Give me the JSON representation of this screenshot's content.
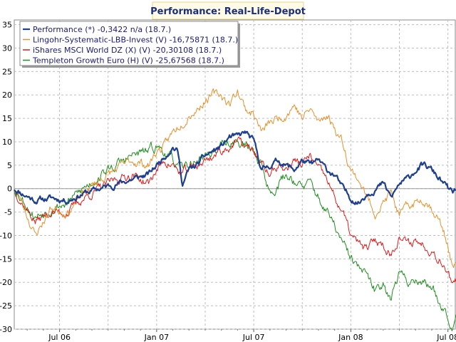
{
  "chart_data": {
    "type": "line",
    "title": "Performance: Real-Life-Depot",
    "xlabel": "",
    "ylabel": "",
    "xlim": [
      -2.8,
      24.5
    ],
    "ylim": [
      -30,
      36
    ],
    "yticks": [
      35,
      30,
      25,
      20,
      15,
      10,
      5,
      0,
      -5,
      -10,
      -15,
      -20,
      -25,
      -30
    ],
    "xticks": [
      {
        "label": "Jul 06",
        "t": 0
      },
      {
        "label": "Jan 07",
        "t": 6
      },
      {
        "label": "Jul 07",
        "t": 12
      },
      {
        "label": "Jan 08",
        "t": 18
      },
      {
        "label": "Jul 08",
        "t": 24
      }
    ],
    "grid": true,
    "legend_position": "top-left",
    "series": [
      {
        "name": "Performance (*) -0,3422 n/a (18.7.)",
        "color": "#1f3f8f",
        "width": 2.2,
        "t": [
          -2.8,
          -2.3,
          -1.5,
          -0.5,
          0.5,
          1.5,
          2.5,
          3.5,
          4.5,
          5.5,
          6.0,
          6.5,
          7.0,
          7.3,
          7.6,
          8,
          8.5,
          9,
          9.5,
          10,
          10.5,
          11,
          11.5,
          12,
          12.5,
          13,
          13.5,
          14,
          14.5,
          15,
          15.5,
          16,
          16.5,
          17,
          17.5,
          18,
          18.5,
          19,
          19.5,
          20,
          20.5,
          21,
          21.5,
          22,
          22.5,
          23,
          23.5,
          24,
          24.3,
          24.5
        ],
        "values": [
          0,
          -1,
          -2.5,
          -2,
          -2.5,
          -1,
          0,
          1,
          2,
          3,
          5,
          7,
          9,
          8,
          1,
          4,
          5,
          7,
          8,
          9,
          11,
          11,
          12,
          10,
          4,
          5,
          6,
          5,
          4,
          6,
          5,
          6,
          4,
          3,
          0,
          -2,
          -3,
          -1,
          0,
          1,
          -2,
          1,
          2,
          4,
          5,
          4,
          2,
          0,
          -1,
          -0.3
        ],
        "noise": 0.6,
        "seed": 11
      },
      {
        "name": "Lingohr-Systematic-LBB-Invest (V) -16,75871 (18.7.)",
        "color": "#e8902a",
        "width": 1,
        "t": [
          -2.8,
          -2.3,
          -1.5,
          -0.5,
          0.5,
          1.5,
          2.5,
          3.5,
          4.5,
          5.5,
          6.0,
          6.5,
          7.0,
          7.5,
          8,
          8.5,
          9,
          9.5,
          10,
          10.5,
          11,
          11.5,
          12,
          12.5,
          13,
          13.5,
          14,
          14.5,
          15,
          15.5,
          16,
          16.5,
          17,
          17.5,
          18,
          18.5,
          19,
          19.5,
          20,
          20.5,
          21,
          21.5,
          22,
          22.5,
          23,
          23.5,
          24,
          24.3,
          24.5
        ],
        "values": [
          0,
          -3,
          -10,
          -4,
          -5,
          -1,
          2,
          4,
          6,
          5,
          8,
          9,
          12,
          14,
          16,
          17,
          19,
          20,
          20,
          18,
          21,
          17,
          16,
          12,
          14,
          15,
          16,
          18,
          15,
          17,
          14,
          16,
          13,
          10,
          4,
          2,
          -2,
          -5,
          -3,
          -1,
          -6,
          -4,
          -3,
          -2,
          -4,
          -7,
          -12,
          -17,
          -16.8
        ],
        "noise": 0.9,
        "seed": 23
      },
      {
        "name": "iShares MSCI World DZ (X) (V) -20,30108 (18.7.)",
        "color": "#e01b1b",
        "width": 1,
        "t": [
          -2.8,
          -2.3,
          -1.5,
          -0.5,
          0.5,
          1.5,
          2.5,
          3.5,
          4.5,
          5.5,
          6.0,
          6.5,
          7.0,
          7.5,
          8,
          8.5,
          9,
          9.5,
          10,
          10.5,
          11,
          11.5,
          12,
          12.5,
          13,
          13.5,
          14,
          14.5,
          15,
          15.5,
          16,
          16.5,
          17,
          17.5,
          18,
          18.5,
          19,
          19.5,
          20,
          20.5,
          21,
          21.5,
          22,
          22.5,
          23,
          23.5,
          24,
          24.3,
          24.5
        ],
        "values": [
          0,
          -3,
          -7,
          -5,
          -5,
          -2,
          0,
          2,
          3,
          1,
          4,
          6,
          5,
          3,
          4,
          5,
          6,
          7,
          8,
          9,
          10,
          9,
          8,
          5,
          3,
          5,
          4,
          6,
          5,
          7,
          4,
          2,
          -2,
          -5,
          -10,
          -12,
          -13,
          -11,
          -12,
          -14,
          -10,
          -12,
          -11,
          -12,
          -13,
          -15,
          -17,
          -21,
          -20.3
        ],
        "noise": 0.9,
        "seed": 37
      },
      {
        "name": "Templeton Growth Euro (H) (V) -25,67568 (18.7.)",
        "color": "#1f8f1f",
        "width": 1,
        "t": [
          -2.8,
          -2.3,
          -1.5,
          -0.5,
          0.5,
          1.5,
          2.5,
          3.5,
          4.5,
          5.5,
          6.0,
          6.5,
          7.0,
          7.5,
          8,
          8.5,
          9,
          9.5,
          10,
          10.5,
          11,
          11.5,
          12,
          12.5,
          13,
          13.5,
          14,
          14.5,
          15,
          15.5,
          16,
          16.5,
          17,
          17.5,
          18,
          18.5,
          19,
          19.5,
          20,
          20.5,
          21,
          21.5,
          22,
          22.5,
          23,
          23.5,
          24,
          24.3,
          24.5
        ],
        "values": [
          0,
          -2,
          -6,
          -4,
          -3,
          0,
          3,
          5,
          7,
          8,
          9,
          8,
          6,
          4,
          5,
          6,
          7,
          8,
          9,
          10,
          10,
          9,
          8,
          5,
          -1,
          1,
          3,
          2,
          0,
          1,
          -2,
          -5,
          -8,
          -12,
          -15,
          -17,
          -19,
          -22,
          -20,
          -23,
          -18,
          -20,
          -19,
          -20,
          -21,
          -24,
          -27,
          -29,
          -25.7
        ],
        "noise": 1.0,
        "seed": 53
      }
    ]
  }
}
